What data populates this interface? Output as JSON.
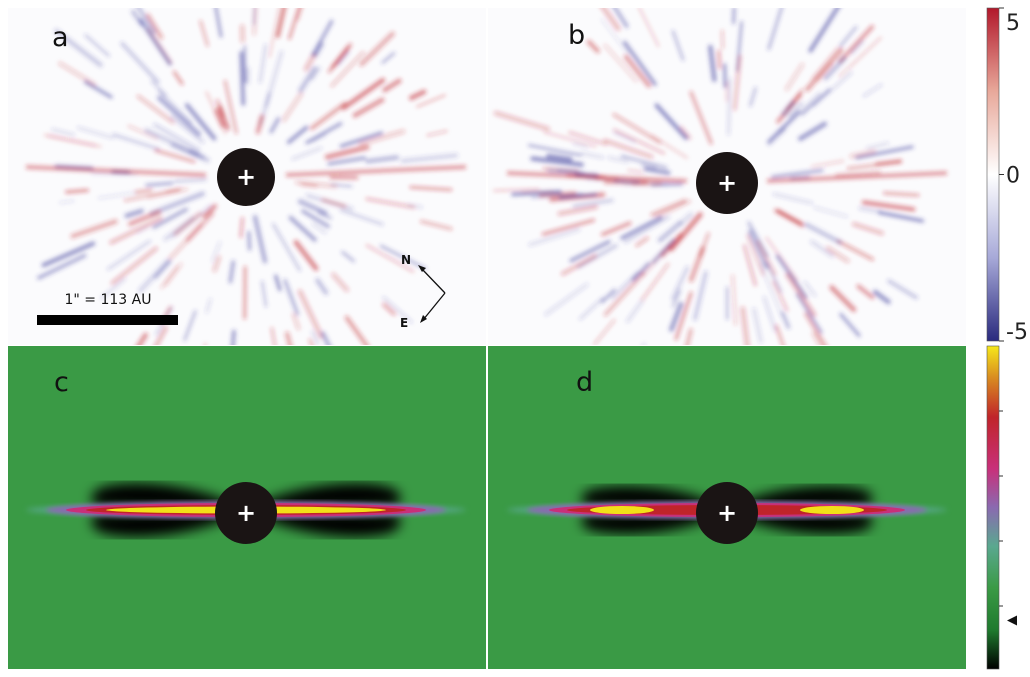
{
  "panels": [
    {
      "label": "a",
      "type": "residual"
    },
    {
      "label": "b",
      "type": "residual"
    },
    {
      "label": "c",
      "type": "disk-model",
      "model": "smooth"
    },
    {
      "label": "d",
      "type": "disk-model",
      "model": "ring"
    }
  ],
  "center_marker": "+",
  "scale_bar": {
    "label": "1\" = 113 AU"
  },
  "compass": {
    "north": "N",
    "east": "E"
  },
  "colorbar_top": {
    "ticks": [
      "5",
      "0",
      "-5"
    ],
    "tick_values": [
      5,
      0,
      -5
    ],
    "range": [
      -5,
      5
    ],
    "colormap": [
      "#3a2b8e",
      "#ffffff",
      "#c0242a"
    ]
  },
  "colorbar_bottom": {
    "colormap": [
      "#000000",
      "#2e8b3c",
      "#5aa88f",
      "#8a58a8",
      "#c8307a",
      "#c0242a",
      "#f2e018"
    ],
    "marker_level": 0.15
  },
  "colors": {
    "model_background": "#3a9a45",
    "mask": "#1a1414",
    "residual_red": "#c0242a",
    "residual_blue": "#3a3a9a"
  }
}
